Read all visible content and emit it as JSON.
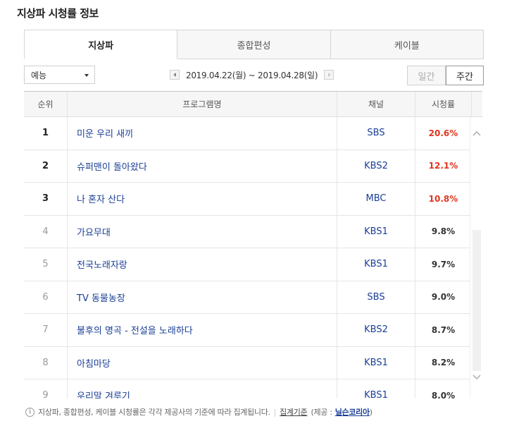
{
  "title": "지상파 시청률 정보",
  "tabs": [
    {
      "label": "지상파",
      "active": true
    },
    {
      "label": "종합편성",
      "active": false
    },
    {
      "label": "케이블",
      "active": false
    }
  ],
  "genre_select": {
    "value": "예능"
  },
  "date_nav": {
    "range": "2019.04.22(월) ~ 2019.04.28(일)"
  },
  "period": {
    "day_label": "일간",
    "week_label": "주간",
    "selected": "주간"
  },
  "table": {
    "headers": {
      "rank": "순위",
      "program": "프로그램명",
      "channel": "채널",
      "rating": "시청률"
    },
    "rows": [
      {
        "rank": "1",
        "program": "미운 우리 새끼",
        "channel": "SBS",
        "rating": "20.6%"
      },
      {
        "rank": "2",
        "program": "슈퍼맨이 돌아왔다",
        "channel": "KBS2",
        "rating": "12.1%"
      },
      {
        "rank": "3",
        "program": "나 혼자 산다",
        "channel": "MBC",
        "rating": "10.8%"
      },
      {
        "rank": "4",
        "program": "가요무대",
        "channel": "KBS1",
        "rating": "9.8%"
      },
      {
        "rank": "5",
        "program": "전국노래자랑",
        "channel": "KBS1",
        "rating": "9.7%"
      },
      {
        "rank": "6",
        "program": "TV 동물농장",
        "channel": "SBS",
        "rating": "9.0%"
      },
      {
        "rank": "7",
        "program": "불후의 명곡 - 전설을 노래하다",
        "channel": "KBS2",
        "rating": "8.7%"
      },
      {
        "rank": "8",
        "program": "아침마당",
        "channel": "KBS1",
        "rating": "8.2%"
      },
      {
        "rank": "9",
        "program": "우리말 겨루기",
        "channel": "KBS1",
        "rating": "8.0%"
      }
    ]
  },
  "footer": {
    "note": "지상파, 종합편성, 케이블 시청률은 각각 제공사의 기준에 따라 집계됩니다.",
    "link": "집계기준",
    "source_prefix": "(제공 :",
    "source_name": "닐슨코리아",
    "source_suffix": ")"
  },
  "colors": {
    "top_rating": "#e2361f",
    "link_blue": "#1a3e96"
  },
  "icons": {
    "prev": "caret-left-icon",
    "next": "caret-right-icon",
    "info": "info-icon"
  }
}
